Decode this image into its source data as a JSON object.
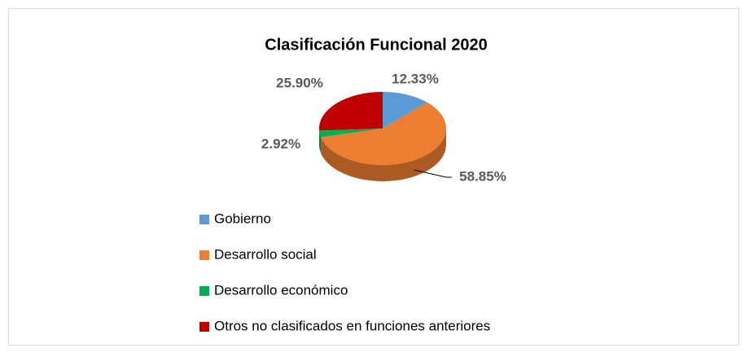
{
  "chart_data": {
    "type": "pie",
    "title": "Clasificación Funcional 2020",
    "categories": [
      "Gobierno",
      "Desarrollo social",
      "Desarrollo económico",
      "Otros no clasificados en funciones anteriores"
    ],
    "values": [
      12.33,
      58.85,
      2.92,
      25.9
    ],
    "value_labels": [
      "12.33%",
      "58.85%",
      "2.92%",
      "25.90%"
    ],
    "colors": [
      "#5b9bd5",
      "#ed7d31",
      "#00b050",
      "#c00000"
    ],
    "legend": "bottom"
  }
}
